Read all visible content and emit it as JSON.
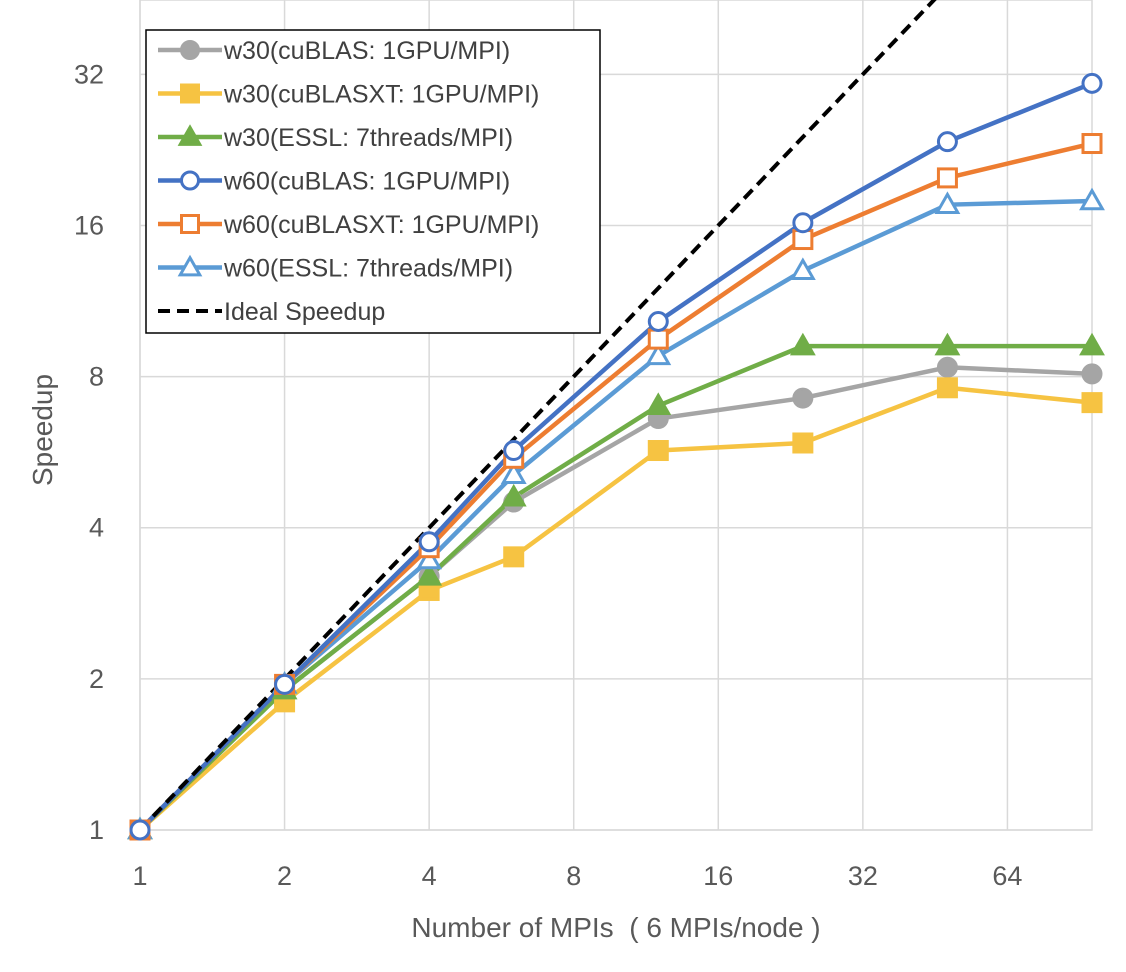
{
  "chart_data": {
    "type": "line",
    "xlabel": "Number of MPIs  ( 6 MPIs/node )",
    "ylabel": "Speedup",
    "x_scale": "log2",
    "y_scale": "log2",
    "xlim": [
      1,
      96
    ],
    "ylim": [
      1,
      45
    ],
    "x_ticks": [
      1,
      2,
      4,
      8,
      16,
      32,
      64
    ],
    "y_ticks": [
      1,
      2,
      4,
      8,
      16,
      32
    ],
    "grid": true,
    "legend_position": "top-left",
    "series": [
      {
        "name": "w30(cuBLAS: 1GPU/MPI)",
        "color": "#A5A5A5",
        "marker": "circle",
        "filled": true,
        "x": [
          1,
          2,
          4,
          6,
          12,
          24,
          48,
          96
        ],
        "y": [
          1,
          1.9,
          3.2,
          4.5,
          6.6,
          7.25,
          8.35,
          8.1
        ]
      },
      {
        "name": "w30(cuBLASXT: 1GPU/MPI)",
        "color": "#F6C342",
        "marker": "square",
        "filled": true,
        "x": [
          1,
          2,
          4,
          6,
          12,
          24,
          48,
          96
        ],
        "y": [
          1,
          1.8,
          3.0,
          3.5,
          5.7,
          5.9,
          7.6,
          7.1
        ]
      },
      {
        "name": "w30(ESSL: 7threads/MPI)",
        "color": "#70AD47",
        "marker": "triangle",
        "filled": true,
        "x": [
          1,
          2,
          4,
          6,
          12,
          24,
          48,
          96
        ],
        "y": [
          1,
          1.9,
          3.2,
          4.6,
          7.0,
          9.2,
          9.2,
          9.2
        ]
      },
      {
        "name": "w60(cuBLAS: 1GPU/MPI)",
        "color": "#4472C4",
        "marker": "circle",
        "filled": false,
        "x": [
          1,
          2,
          4,
          6,
          12,
          24,
          48,
          96
        ],
        "y": [
          1,
          1.95,
          3.75,
          5.7,
          10.3,
          16.2,
          23.5,
          30.7
        ]
      },
      {
        "name": "w60(cuBLASXT: 1GPU/MPI)",
        "color": "#ED7D31",
        "marker": "square",
        "filled": false,
        "x": [
          1,
          2,
          4,
          6,
          12,
          24,
          48,
          96
        ],
        "y": [
          1,
          1.95,
          3.65,
          5.5,
          9.5,
          15.0,
          19.9,
          23.3
        ]
      },
      {
        "name": "w60(ESSL: 7threads/MPI)",
        "color": "#5B9BD5",
        "marker": "triangle",
        "filled": false,
        "x": [
          1,
          2,
          4,
          6,
          12,
          24,
          48,
          96
        ],
        "y": [
          1,
          1.95,
          3.45,
          5.1,
          8.8,
          13.0,
          17.6,
          17.9
        ]
      },
      {
        "name": "Ideal Speedup",
        "color": "#000000",
        "marker": "none",
        "dashed": true,
        "x": [
          1,
          64
        ],
        "y": [
          1,
          64
        ]
      }
    ]
  }
}
